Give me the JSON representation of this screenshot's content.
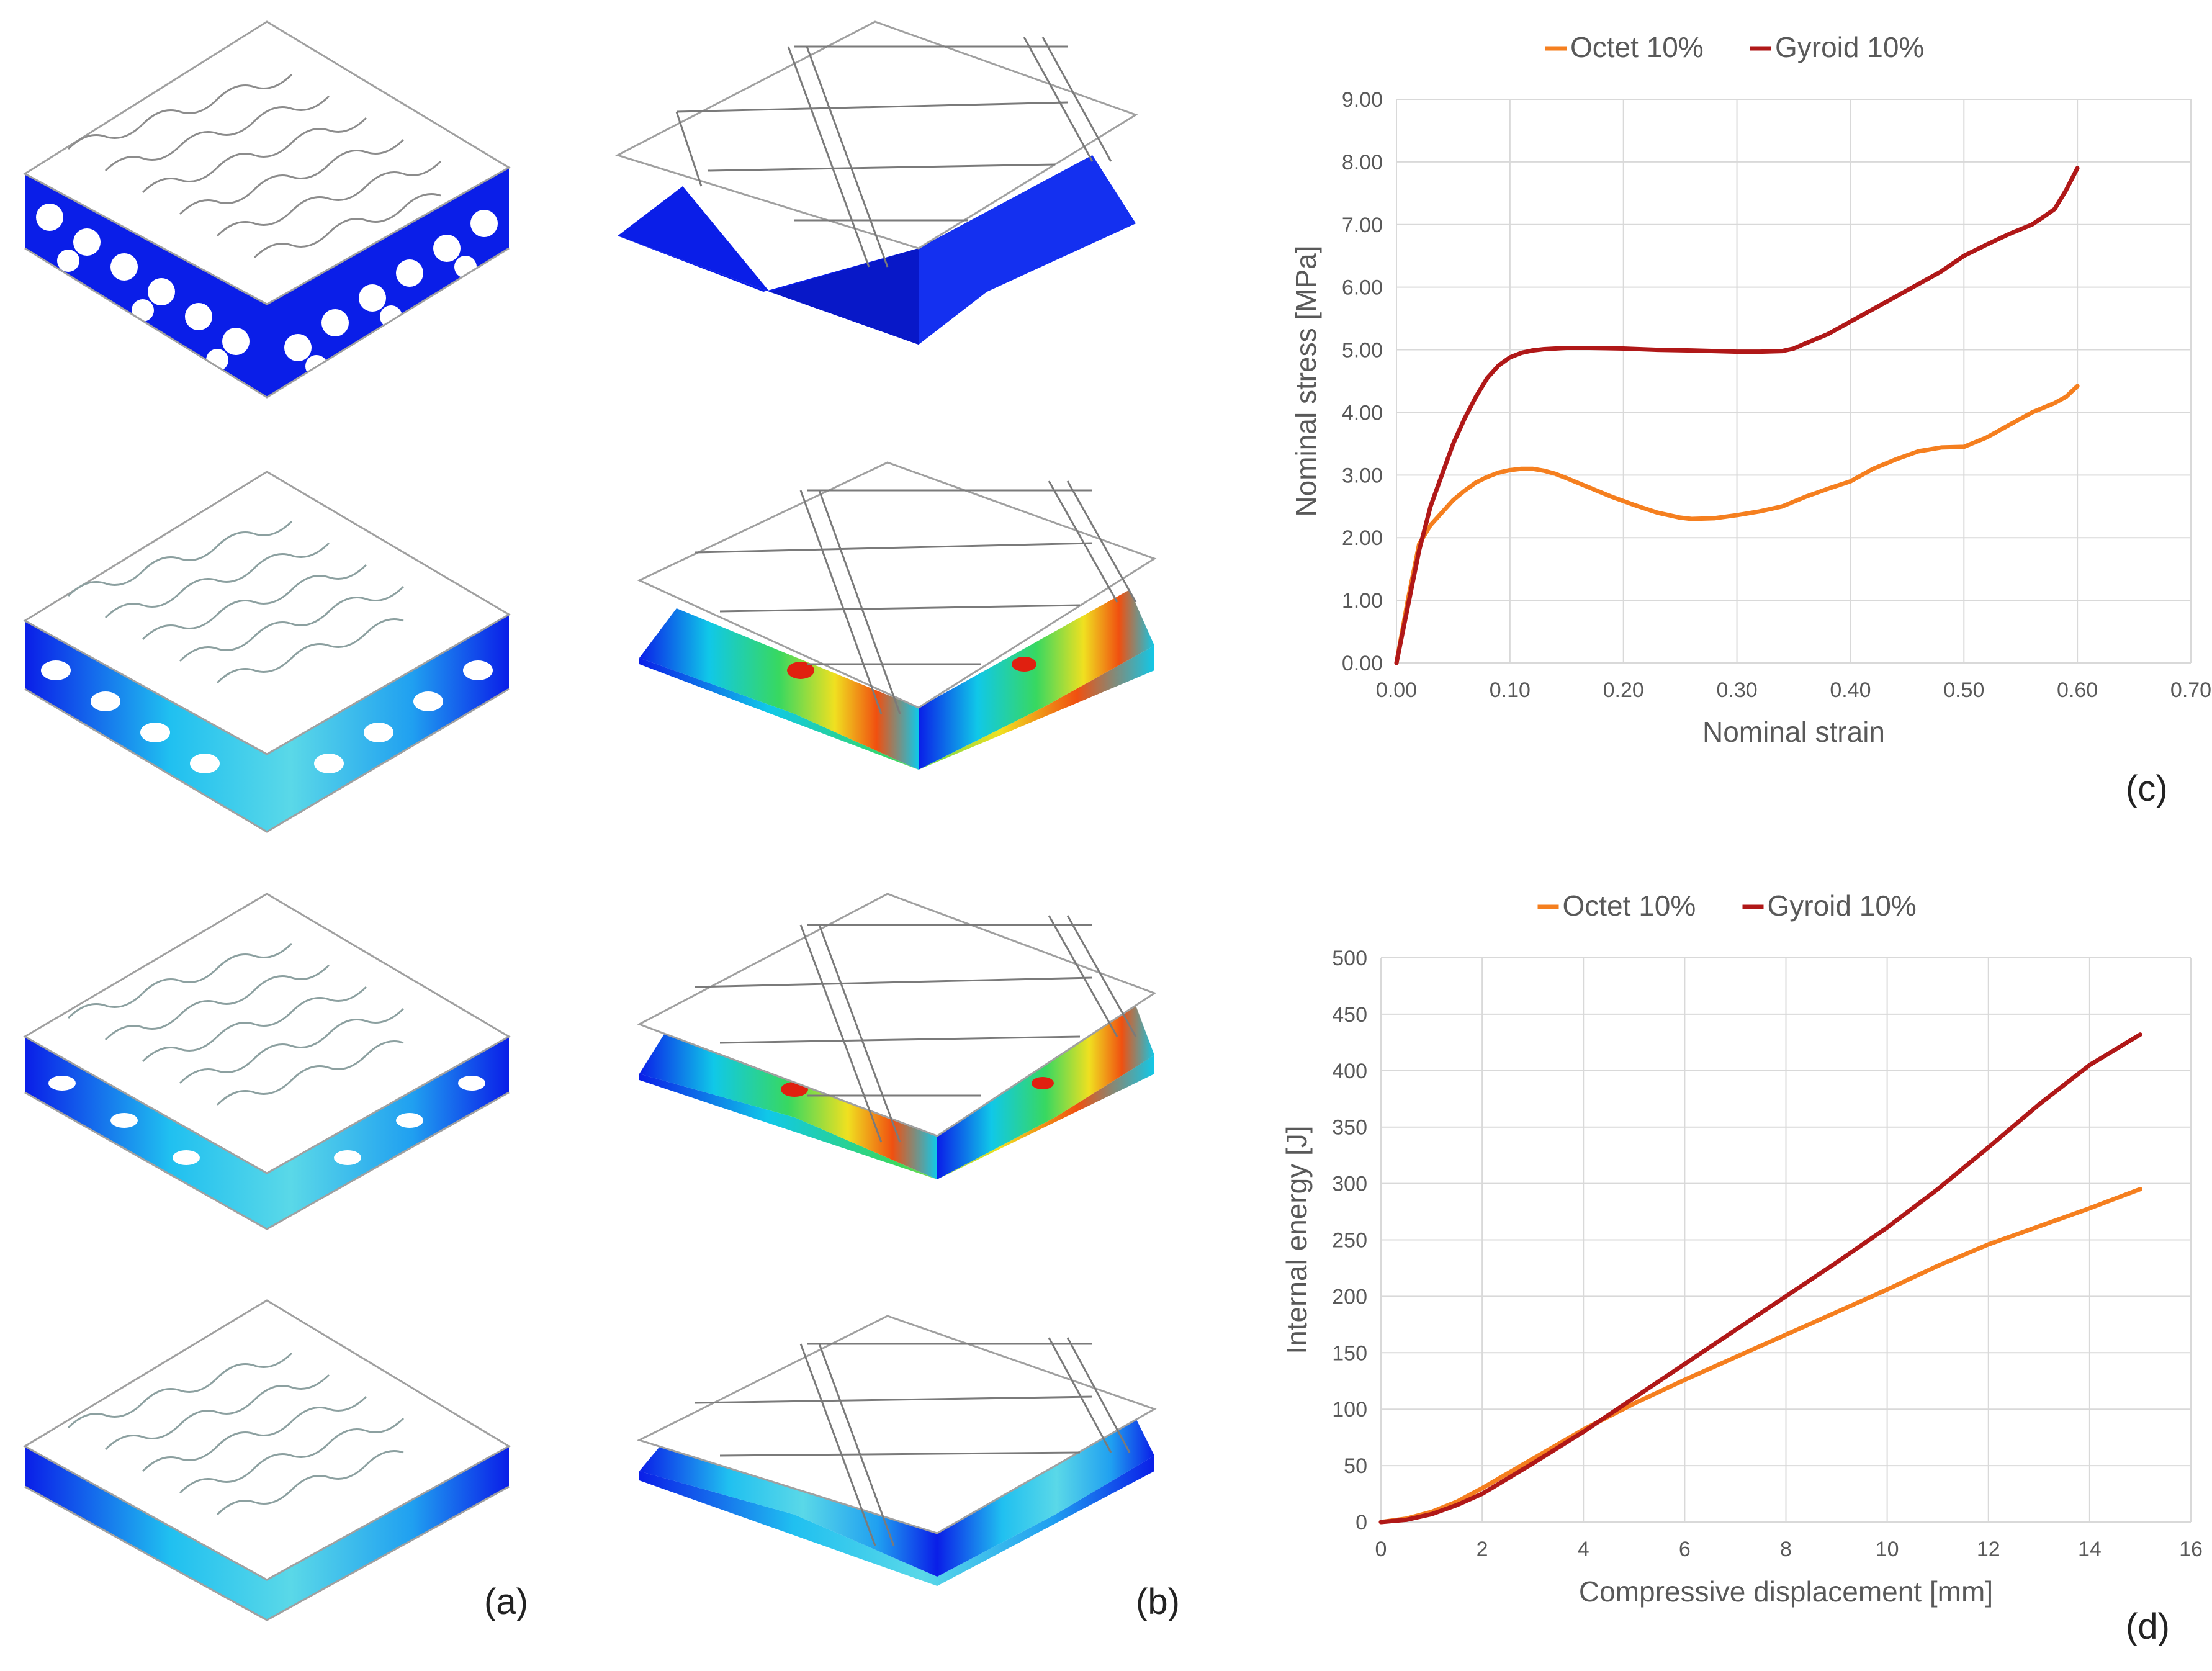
{
  "panel_labels": {
    "a": "(a)",
    "b": "(b)",
    "c": "(c)",
    "d": "(d)"
  },
  "colors": {
    "octet": "#f57f1f",
    "gyroid": "#b01818",
    "grid": "#d9d9d9",
    "axis_text": "#595959",
    "contour_blue": "#0a1ee8"
  },
  "fea_images": {
    "columns": [
      {
        "label": "(a)",
        "lattice": "gyroid",
        "frames": 4
      },
      {
        "label": "(b)",
        "lattice": "octet",
        "frames": 4
      }
    ]
  },
  "chart_data": [
    {
      "id": "c",
      "type": "line",
      "title": "",
      "xlabel": "Nominal strain",
      "ylabel": "Nominal stress [MPa]",
      "xlim": [
        0,
        0.7
      ],
      "ylim": [
        0,
        9
      ],
      "xticks": [
        "0.00",
        "0.10",
        "0.20",
        "0.30",
        "0.40",
        "0.50",
        "0.60",
        "0.70"
      ],
      "yticks": [
        "0.00",
        "1.00",
        "2.00",
        "3.00",
        "4.00",
        "5.00",
        "6.00",
        "7.00",
        "8.00",
        "9.00"
      ],
      "legend": "top-center",
      "grid": true,
      "series": [
        {
          "name": "Octet 10%",
          "color": "#f57f1f",
          "x": [
            0,
            0.01,
            0.02,
            0.03,
            0.04,
            0.05,
            0.06,
            0.07,
            0.08,
            0.09,
            0.1,
            0.11,
            0.12,
            0.13,
            0.14,
            0.15,
            0.17,
            0.19,
            0.21,
            0.23,
            0.25,
            0.26,
            0.28,
            0.3,
            0.32,
            0.34,
            0.36,
            0.38,
            0.4,
            0.42,
            0.44,
            0.46,
            0.48,
            0.5,
            0.52,
            0.54,
            0.56,
            0.58,
            0.59,
            0.6
          ],
          "values": [
            0,
            1.0,
            1.9,
            2.2,
            2.4,
            2.6,
            2.75,
            2.88,
            2.97,
            3.04,
            3.08,
            3.1,
            3.1,
            3.07,
            3.02,
            2.95,
            2.8,
            2.65,
            2.52,
            2.4,
            2.32,
            2.3,
            2.31,
            2.36,
            2.42,
            2.5,
            2.65,
            2.78,
            2.9,
            3.1,
            3.25,
            3.38,
            3.44,
            3.45,
            3.6,
            3.8,
            4.0,
            4.15,
            4.25,
            4.42
          ]
        },
        {
          "name": "Gyroid 10%",
          "color": "#b01818",
          "x": [
            0,
            0.01,
            0.02,
            0.03,
            0.04,
            0.05,
            0.06,
            0.07,
            0.08,
            0.09,
            0.1,
            0.11,
            0.12,
            0.13,
            0.15,
            0.17,
            0.2,
            0.23,
            0.26,
            0.28,
            0.3,
            0.32,
            0.34,
            0.35,
            0.36,
            0.38,
            0.4,
            0.42,
            0.44,
            0.46,
            0.48,
            0.5,
            0.52,
            0.54,
            0.56,
            0.57,
            0.58,
            0.59,
            0.6
          ],
          "values": [
            0,
            0.9,
            1.8,
            2.5,
            3.0,
            3.5,
            3.9,
            4.25,
            4.55,
            4.75,
            4.88,
            4.95,
            4.99,
            5.01,
            5.03,
            5.03,
            5.02,
            5.0,
            4.99,
            4.98,
            4.97,
            4.97,
            4.98,
            5.02,
            5.1,
            5.25,
            5.45,
            5.65,
            5.85,
            6.05,
            6.25,
            6.5,
            6.68,
            6.85,
            7.0,
            7.12,
            7.25,
            7.55,
            7.9
          ]
        }
      ]
    },
    {
      "id": "d",
      "type": "line",
      "title": "",
      "xlabel": "Compressive displacement [mm]",
      "ylabel": "Internal energy [J]",
      "xlim": [
        0,
        16
      ],
      "ylim": [
        0,
        500
      ],
      "xticks": [
        "0",
        "2",
        "4",
        "6",
        "8",
        "10",
        "12",
        "14",
        "16"
      ],
      "yticks": [
        "0",
        "50",
        "100",
        "150",
        "200",
        "250",
        "300",
        "350",
        "400",
        "450",
        "500"
      ],
      "legend": "top-center",
      "grid": true,
      "series": [
        {
          "name": "Octet 10%",
          "color": "#f57f1f",
          "x": [
            0,
            0.5,
            1,
            1.5,
            2,
            3,
            4,
            5,
            6,
            7,
            8,
            9,
            10,
            11,
            12,
            13,
            14,
            15
          ],
          "values": [
            0,
            3,
            9,
            18,
            30,
            56,
            82,
            105,
            126,
            146,
            166,
            186,
            206,
            227,
            246,
            262,
            278,
            295
          ]
        },
        {
          "name": "Gyroid 10%",
          "color": "#b01818",
          "x": [
            0,
            0.5,
            1,
            1.5,
            2,
            3,
            4,
            5,
            6,
            7,
            8,
            9,
            10,
            11,
            12,
            13,
            14,
            15
          ],
          "values": [
            0,
            2,
            7,
            15,
            25,
            52,
            80,
            110,
            140,
            170,
            200,
            230,
            261,
            295,
            332,
            370,
            405,
            432
          ]
        }
      ]
    }
  ]
}
